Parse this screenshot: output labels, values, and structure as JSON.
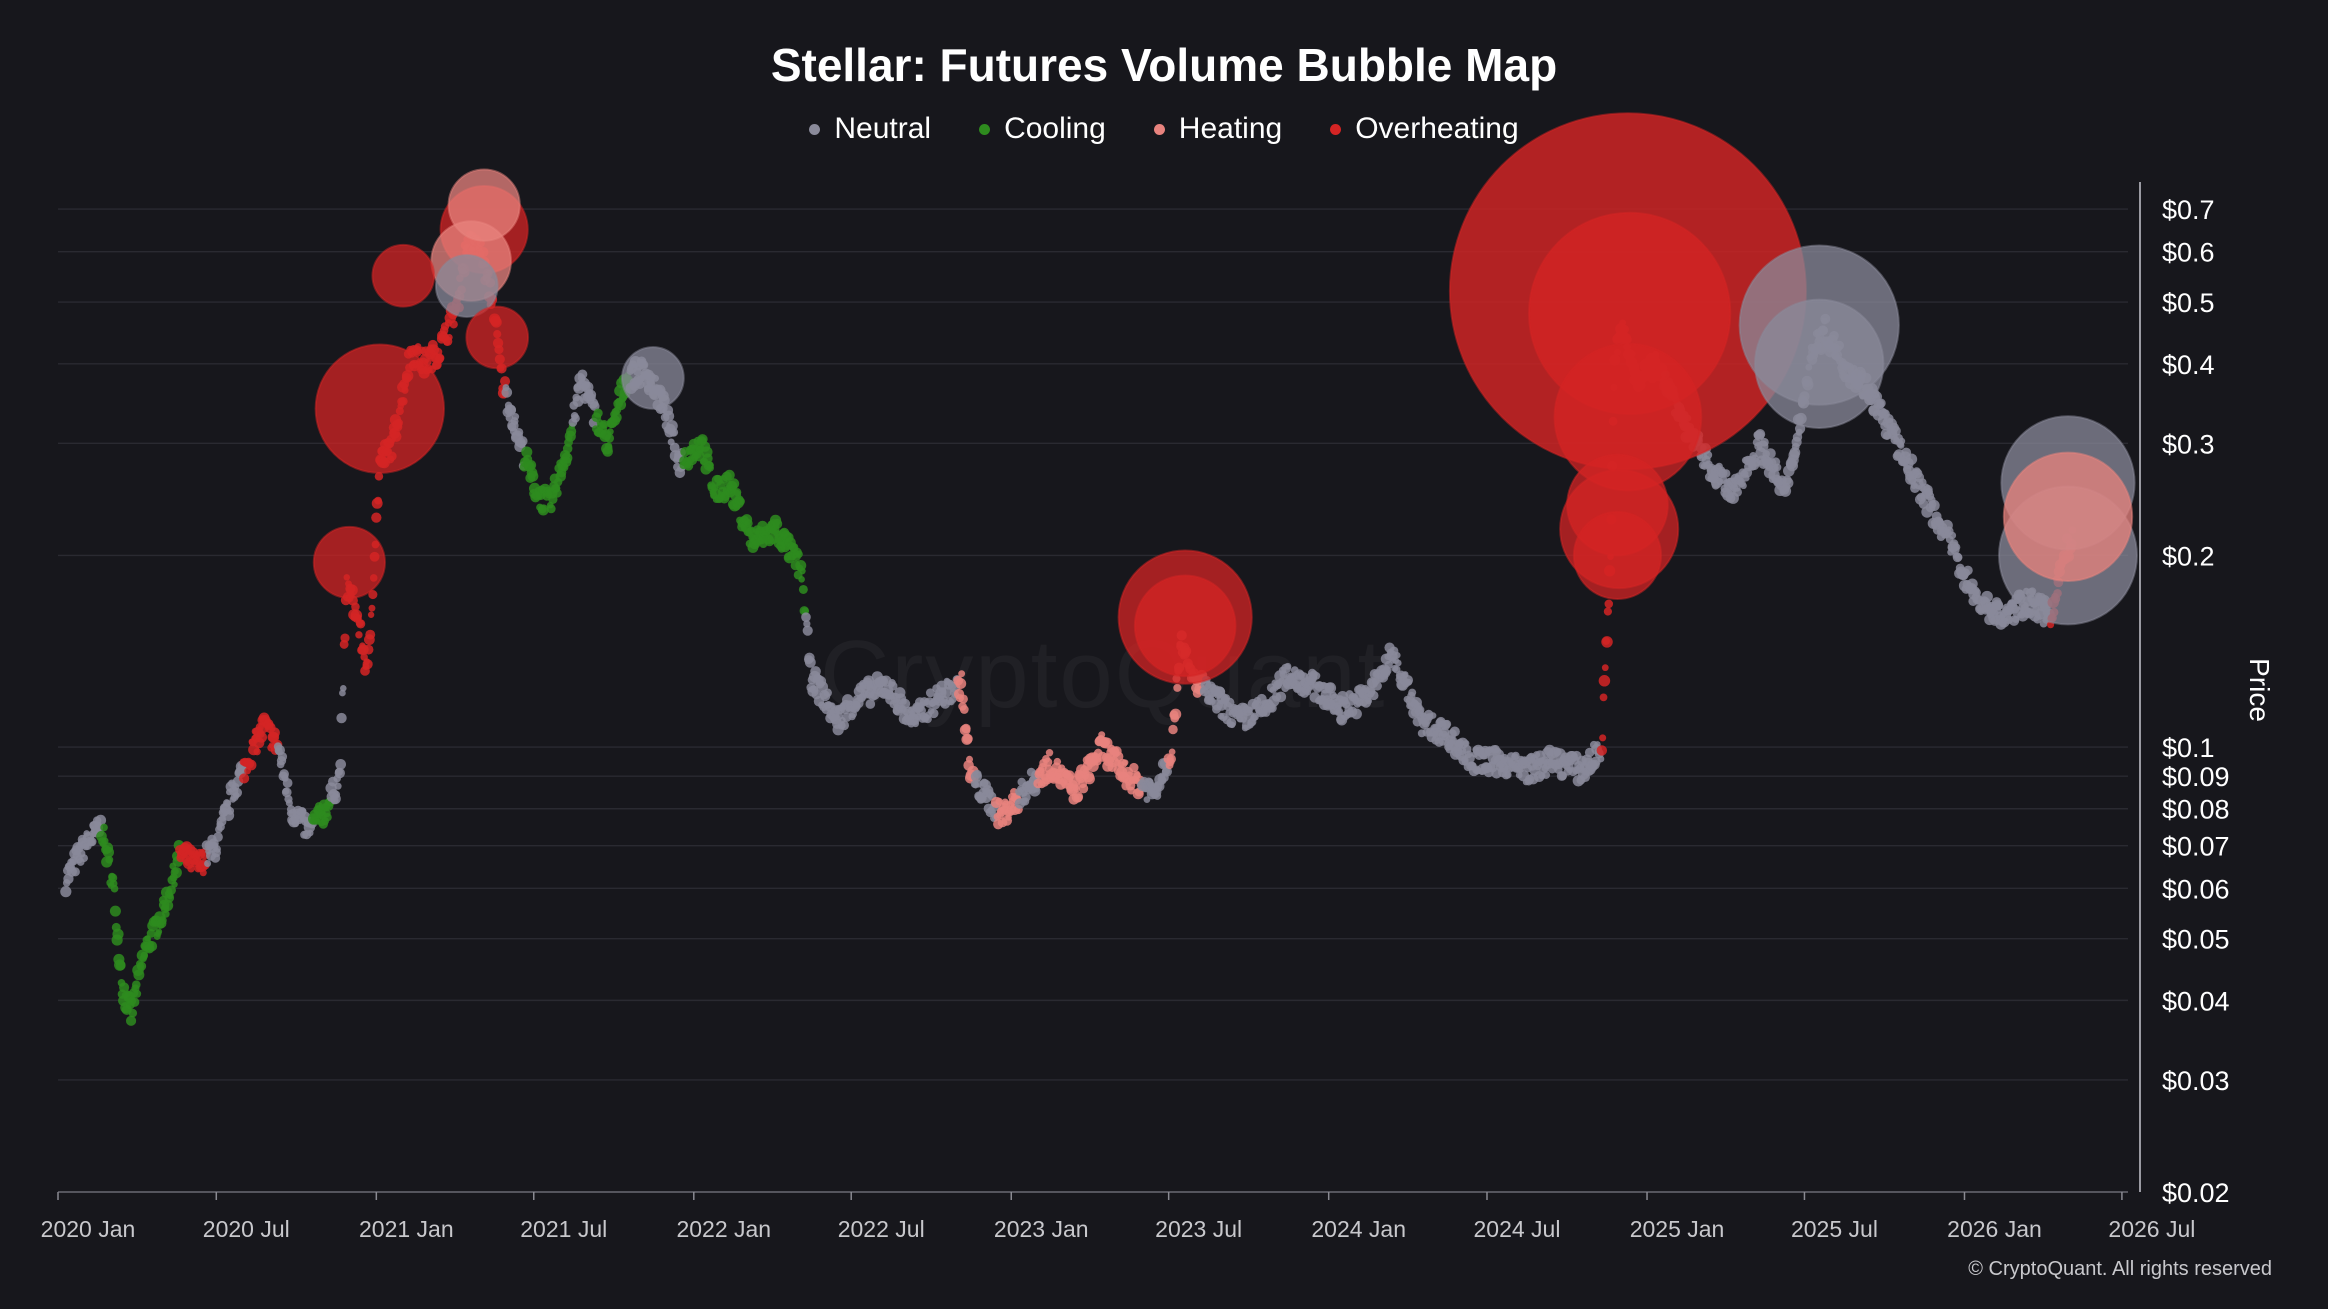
{
  "chart_data": {
    "type": "scatter",
    "title": "Stellar: Futures Volume Bubble Map",
    "ylabel": "Price",
    "yscale": "log",
    "ylim": [
      0.02,
      0.75
    ],
    "xlim": [
      "2020-01-01",
      "2026-07-08"
    ],
    "grid": true,
    "legend_position": "top",
    "x_tick_labels": [
      "2020 Jan",
      "2020 Jul",
      "2021 Jan",
      "2021 Jul",
      "2022 Jan",
      "2022 Jul",
      "2023 Jan",
      "2023 Jul",
      "2024 Jan",
      "2024 Jul",
      "2025 Jan",
      "2025 Jul",
      "2026 Jan",
      "2026 Jul"
    ],
    "x_tick_dates": [
      "2020-01-01",
      "2020-07-01",
      "2021-01-01",
      "2021-07-01",
      "2022-01-01",
      "2022-07-01",
      "2023-01-01",
      "2023-07-01",
      "2024-01-01",
      "2024-07-01",
      "2025-01-01",
      "2025-07-01",
      "2026-01-01",
      "2026-07-01"
    ],
    "y_ticks": [
      {
        "value": 0.7,
        "label": "$0.7"
      },
      {
        "value": 0.6,
        "label": "$0.6"
      },
      {
        "value": 0.5,
        "label": "$0.5"
      },
      {
        "value": 0.4,
        "label": "$0.4"
      },
      {
        "value": 0.3,
        "label": "$0.3"
      },
      {
        "value": 0.2,
        "label": "$0.2"
      },
      {
        "value": 0.1,
        "label": "$0.1"
      },
      {
        "value": 0.09,
        "label": "$0.09"
      },
      {
        "value": 0.08,
        "label": "$0.08"
      },
      {
        "value": 0.07,
        "label": "$0.07"
      },
      {
        "value": 0.06,
        "label": "$0.06"
      },
      {
        "value": 0.05,
        "label": "$0.05"
      },
      {
        "value": 0.04,
        "label": "$0.04"
      },
      {
        "value": 0.03,
        "label": "$0.03"
      },
      {
        "value": 0.02,
        "label": "$0.02"
      }
    ],
    "series": [
      {
        "name": "Neutral",
        "color": "#8a8a9a"
      },
      {
        "name": "Cooling",
        "color": "#2e8b1e"
      },
      {
        "name": "Heating",
        "color": "#e8837e"
      },
      {
        "name": "Overheating",
        "color": "#d42424"
      }
    ],
    "price_path": [
      [
        "2020-01-10",
        0.062
      ],
      [
        "2020-02-01",
        0.07
      ],
      [
        "2020-02-20",
        0.075
      ],
      [
        "2020-03-05",
        0.06
      ],
      [
        "2020-03-15",
        0.042
      ],
      [
        "2020-03-25",
        0.038
      ],
      [
        "2020-04-10",
        0.048
      ],
      [
        "2020-05-01",
        0.055
      ],
      [
        "2020-05-20",
        0.068
      ],
      [
        "2020-06-10",
        0.065
      ],
      [
        "2020-07-01",
        0.07
      ],
      [
        "2020-07-20",
        0.085
      ],
      [
        "2020-08-10",
        0.098
      ],
      [
        "2020-08-25",
        0.108
      ],
      [
        "2020-09-10",
        0.1
      ],
      [
        "2020-09-25",
        0.08
      ],
      [
        "2020-10-15",
        0.074
      ],
      [
        "2020-11-05",
        0.08
      ],
      [
        "2020-11-20",
        0.09
      ],
      [
        "2020-11-28",
        0.18
      ],
      [
        "2020-12-10",
        0.16
      ],
      [
        "2020-12-22",
        0.13
      ],
      [
        "2021-01-05",
        0.28
      ],
      [
        "2021-01-20",
        0.3
      ],
      [
        "2021-02-10",
        0.42
      ],
      [
        "2021-02-25",
        0.4
      ],
      [
        "2021-03-15",
        0.42
      ],
      [
        "2021-04-05",
        0.5
      ],
      [
        "2021-04-15",
        0.62
      ],
      [
        "2021-05-01",
        0.6
      ],
      [
        "2021-05-15",
        0.5
      ],
      [
        "2021-05-25",
        0.38
      ],
      [
        "2021-06-15",
        0.3
      ],
      [
        "2021-07-05",
        0.25
      ],
      [
        "2021-07-20",
        0.24
      ],
      [
        "2021-08-10",
        0.3
      ],
      [
        "2021-08-25",
        0.38
      ],
      [
        "2021-09-10",
        0.33
      ],
      [
        "2021-09-25",
        0.3
      ],
      [
        "2021-10-15",
        0.38
      ],
      [
        "2021-11-05",
        0.39
      ],
      [
        "2021-11-25",
        0.35
      ],
      [
        "2021-12-15",
        0.28
      ],
      [
        "2022-01-10",
        0.3
      ],
      [
        "2022-01-25",
        0.25
      ],
      [
        "2022-02-10",
        0.26
      ],
      [
        "2022-03-10",
        0.21
      ],
      [
        "2022-04-05",
        0.22
      ],
      [
        "2022-05-05",
        0.19
      ],
      [
        "2022-05-15",
        0.13
      ],
      [
        "2022-06-15",
        0.11
      ],
      [
        "2022-07-10",
        0.12
      ],
      [
        "2022-08-10",
        0.125
      ],
      [
        "2022-09-10",
        0.11
      ],
      [
        "2022-10-10",
        0.12
      ],
      [
        "2022-11-05",
        0.125
      ],
      [
        "2022-11-15",
        0.09
      ],
      [
        "2022-12-20",
        0.078
      ],
      [
        "2023-01-15",
        0.085
      ],
      [
        "2023-02-15",
        0.094
      ],
      [
        "2023-03-15",
        0.085
      ],
      [
        "2023-04-15",
        0.1
      ],
      [
        "2023-05-15",
        0.09
      ],
      [
        "2023-06-15",
        0.085
      ],
      [
        "2023-07-05",
        0.1
      ],
      [
        "2023-07-15",
        0.15
      ],
      [
        "2023-07-25",
        0.13
      ],
      [
        "2023-08-20",
        0.12
      ],
      [
        "2023-09-20",
        0.11
      ],
      [
        "2023-10-20",
        0.115
      ],
      [
        "2023-11-15",
        0.13
      ],
      [
        "2023-12-15",
        0.125
      ],
      [
        "2024-01-15",
        0.115
      ],
      [
        "2024-02-15",
        0.12
      ],
      [
        "2024-03-15",
        0.14
      ],
      [
        "2024-04-15",
        0.11
      ],
      [
        "2024-05-15",
        0.105
      ],
      [
        "2024-06-15",
        0.095
      ],
      [
        "2024-07-15",
        0.095
      ],
      [
        "2024-08-15",
        0.092
      ],
      [
        "2024-09-15",
        0.095
      ],
      [
        "2024-10-20",
        0.092
      ],
      [
        "2024-11-10",
        0.1
      ],
      [
        "2024-11-20",
        0.2
      ],
      [
        "2024-11-25",
        0.42
      ],
      [
        "2024-12-05",
        0.45
      ],
      [
        "2024-12-20",
        0.38
      ],
      [
        "2025-01-15",
        0.4
      ],
      [
        "2025-02-10",
        0.33
      ],
      [
        "2025-03-10",
        0.28
      ],
      [
        "2025-04-10",
        0.25
      ],
      [
        "2025-05-10",
        0.3
      ],
      [
        "2025-06-10",
        0.25
      ],
      [
        "2025-07-10",
        0.42
      ],
      [
        "2025-07-25",
        0.45
      ],
      [
        "2025-08-15",
        0.4
      ],
      [
        "2025-09-15",
        0.36
      ],
      [
        "2025-10-15",
        0.3
      ],
      [
        "2025-11-15",
        0.25
      ],
      [
        "2025-12-15",
        0.21
      ],
      [
        "2026-01-15",
        0.17
      ],
      [
        "2026-02-15",
        0.16
      ],
      [
        "2026-03-15",
        0.17
      ],
      [
        "2026-04-10",
        0.16
      ],
      [
        "2026-04-25",
        0.2
      ],
      [
        "2026-05-05",
        0.21
      ]
    ],
    "regime_segments": [
      {
        "start": "2020-01-01",
        "end": "2020-02-20",
        "series": "Neutral"
      },
      {
        "start": "2020-02-20",
        "end": "2020-05-20",
        "series": "Cooling"
      },
      {
        "start": "2020-05-20",
        "end": "2020-06-20",
        "series": "Overheating"
      },
      {
        "start": "2020-06-20",
        "end": "2020-08-01",
        "series": "Neutral"
      },
      {
        "start": "2020-08-01",
        "end": "2020-09-10",
        "series": "Overheating"
      },
      {
        "start": "2020-09-10",
        "end": "2020-10-20",
        "series": "Neutral"
      },
      {
        "start": "2020-10-20",
        "end": "2020-11-10",
        "series": "Cooling"
      },
      {
        "start": "2020-11-10",
        "end": "2020-11-25",
        "series": "Neutral"
      },
      {
        "start": "2020-11-25",
        "end": "2021-05-30",
        "series": "Overheating"
      },
      {
        "start": "2021-05-30",
        "end": "2021-06-20",
        "series": "Neutral"
      },
      {
        "start": "2021-06-20",
        "end": "2021-08-15",
        "series": "Cooling"
      },
      {
        "start": "2021-08-15",
        "end": "2021-09-10",
        "series": "Neutral"
      },
      {
        "start": "2021-09-10",
        "end": "2021-10-20",
        "series": "Cooling"
      },
      {
        "start": "2021-10-20",
        "end": "2021-12-20",
        "series": "Neutral"
      },
      {
        "start": "2021-12-20",
        "end": "2022-05-10",
        "series": "Cooling"
      },
      {
        "start": "2022-05-10",
        "end": "2022-11-01",
        "series": "Neutral"
      },
      {
        "start": "2022-11-01",
        "end": "2022-11-20",
        "series": "Heating"
      },
      {
        "start": "2022-11-20",
        "end": "2022-12-15",
        "series": "Neutral"
      },
      {
        "start": "2022-12-15",
        "end": "2023-01-10",
        "series": "Heating"
      },
      {
        "start": "2023-01-10",
        "end": "2023-02-01",
        "series": "Neutral"
      },
      {
        "start": "2023-02-01",
        "end": "2023-06-01",
        "series": "Heating"
      },
      {
        "start": "2023-06-01",
        "end": "2023-07-01",
        "series": "Neutral"
      },
      {
        "start": "2023-07-01",
        "end": "2023-08-10",
        "series": "Heating"
      },
      {
        "start": "2023-08-10",
        "end": "2024-11-10",
        "series": "Neutral"
      },
      {
        "start": "2024-11-10",
        "end": "2025-01-20",
        "series": "Overheating"
      },
      {
        "start": "2025-01-20",
        "end": "2026-04-10",
        "series": "Neutral"
      },
      {
        "start": "2026-04-10",
        "end": "2026-05-10",
        "series": "Overheating"
      }
    ],
    "large_bubbles": [
      {
        "date": "2024-12-10",
        "price": 0.52,
        "series": "Overheating",
        "relative_size": 1.0
      },
      {
        "date": "2024-12-12",
        "price": 0.48,
        "series": "Overheating",
        "relative_size": 0.32
      },
      {
        "date": "2024-12-10",
        "price": 0.33,
        "series": "Overheating",
        "relative_size": 0.17
      },
      {
        "date": "2024-11-30",
        "price": 0.22,
        "series": "Overheating",
        "relative_size": 0.11
      },
      {
        "date": "2024-11-28",
        "price": 0.24,
        "series": "Overheating",
        "relative_size": 0.08
      },
      {
        "date": "2024-11-28",
        "price": 0.2,
        "series": "Overheating",
        "relative_size": 0.06
      },
      {
        "date": "2025-07-18",
        "price": 0.46,
        "series": "Neutral",
        "relative_size": 0.2
      },
      {
        "date": "2025-07-18",
        "price": 0.4,
        "series": "Neutral",
        "relative_size": 0.13
      },
      {
        "date": "2026-04-30",
        "price": 0.26,
        "series": "Neutral",
        "relative_size": 0.14
      },
      {
        "date": "2026-04-30",
        "price": 0.2,
        "series": "Neutral",
        "relative_size": 0.15
      },
      {
        "date": "2026-04-30",
        "price": 0.23,
        "series": "Heating",
        "relative_size": 0.13
      },
      {
        "date": "2021-01-05",
        "price": 0.34,
        "series": "Overheating",
        "relative_size": 0.13
      },
      {
        "date": "2023-07-20",
        "price": 0.16,
        "series": "Overheating",
        "relative_size": 0.14
      },
      {
        "date": "2023-07-20",
        "price": 0.155,
        "series": "Overheating",
        "relative_size": 0.08
      },
      {
        "date": "2021-05-05",
        "price": 0.65,
        "series": "Overheating",
        "relative_size": 0.06
      },
      {
        "date": "2021-04-20",
        "price": 0.58,
        "series": "Heating",
        "relative_size": 0.05
      },
      {
        "date": "2021-05-05",
        "price": 0.71,
        "series": "Heating",
        "relative_size": 0.04
      },
      {
        "date": "2021-04-15",
        "price": 0.53,
        "series": "Neutral",
        "relative_size": 0.03
      },
      {
        "date": "2020-12-01",
        "price": 0.195,
        "series": "Overheating",
        "relative_size": 0.04
      },
      {
        "date": "2021-02-01",
        "price": 0.55,
        "series": "Overheating",
        "relative_size": 0.03
      },
      {
        "date": "2021-11-15",
        "price": 0.38,
        "series": "Neutral",
        "relative_size": 0.03
      },
      {
        "date": "2021-05-20",
        "price": 0.44,
        "series": "Overheating",
        "relative_size": 0.03
      }
    ]
  },
  "copyright": "© CryptoQuant. All rights reserved",
  "watermark": "CryptoQuant"
}
